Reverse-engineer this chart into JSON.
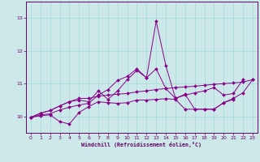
{
  "xlabel": "Windchill (Refroidissement éolien,°C)",
  "background_color": "#cce8e8",
  "line_color": "#880088",
  "grid_color": "#aadddd",
  "xlim": [
    -0.5,
    23.5
  ],
  "ylim": [
    9.5,
    13.5
  ],
  "yticks": [
    10,
    11,
    12,
    13
  ],
  "xticks": [
    0,
    1,
    2,
    3,
    4,
    5,
    6,
    7,
    8,
    9,
    10,
    11,
    12,
    13,
    14,
    15,
    16,
    17,
    18,
    19,
    20,
    21,
    22,
    23
  ],
  "series": [
    [
      9.97,
      10.02,
      10.05,
      9.84,
      9.77,
      10.12,
      10.3,
      10.45,
      10.42,
      10.4,
      10.42,
      10.5,
      10.5,
      10.52,
      10.54,
      10.52,
      10.22,
      10.22,
      10.22,
      10.22,
      10.42,
      10.52,
      null,
      null
    ],
    [
      9.97,
      10.05,
      10.08,
      10.2,
      10.28,
      10.35,
      10.4,
      10.65,
      10.82,
      11.1,
      11.22,
      11.45,
      11.18,
      11.45,
      10.85,
      10.55,
      10.65,
      10.72,
      10.78,
      10.88,
      10.65,
      10.7,
      11.12,
      null
    ],
    [
      9.97,
      10.1,
      10.18,
      10.32,
      10.45,
      10.5,
      10.45,
      10.78,
      10.52,
      10.78,
      11.12,
      11.4,
      11.18,
      12.9,
      11.55,
      10.55,
      10.68,
      10.22,
      10.22,
      10.22,
      10.42,
      10.55,
      10.72,
      11.12
    ],
    [
      9.97,
      10.1,
      10.18,
      10.32,
      10.45,
      10.55,
      10.55,
      10.62,
      10.65,
      10.68,
      10.7,
      10.75,
      10.78,
      10.82,
      10.85,
      10.88,
      10.9,
      10.92,
      10.95,
      10.98,
      11.0,
      11.02,
      11.05,
      11.12
    ]
  ]
}
